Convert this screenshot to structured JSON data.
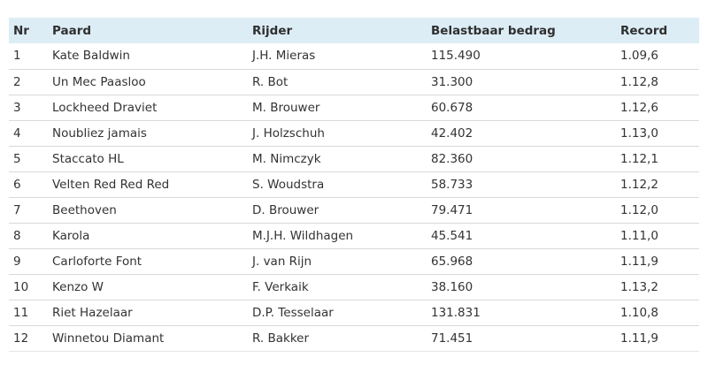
{
  "table": {
    "headers": [
      "Nr",
      "Paard",
      "Rijder",
      "Belastbaar bedrag",
      "Record"
    ],
    "rows": [
      [
        "1",
        "Kate Baldwin",
        "J.H. Mieras",
        "115.490",
        "1.09,6"
      ],
      [
        "2",
        "Un Mec Paasloo",
        "R. Bot",
        "31.300",
        "1.12,8"
      ],
      [
        "3",
        "Lockheed Draviet",
        "M. Brouwer",
        "60.678",
        "1.12,6"
      ],
      [
        "4",
        "Noubliez jamais",
        "J. Holzschuh",
        "42.402",
        "1.13,0"
      ],
      [
        "5",
        "Staccato HL",
        "M. Nimczyk",
        "82.360",
        "1.12,1"
      ],
      [
        "6",
        "Velten Red Red Red",
        "S. Woudstra",
        "58.733",
        "1.12,2"
      ],
      [
        "7",
        "Beethoven",
        "D. Brouwer",
        "79.471",
        "1.12,0"
      ],
      [
        "8",
        "Karola",
        "M.J.H. Wildhagen",
        "45.541",
        "1.11,0"
      ],
      [
        "9",
        "Carloforte Font",
        "J. van Rijn",
        "65.968",
        "1.11,9"
      ],
      [
        "10",
        "Kenzo W",
        "F. Verkaik",
        "38.160",
        "1.13,2"
      ],
      [
        "11",
        "Riet Hazelaar",
        "D.P. Tesselaar",
        "131.831",
        "1.10,8"
      ],
      [
        "12",
        "Winnetou Diamant",
        "R. Bakker",
        "71.451",
        "1.11,9"
      ]
    ]
  },
  "colors": {
    "header_background": "#dcedf6",
    "row_divider": "#d9d9d9",
    "text": "#333333"
  }
}
